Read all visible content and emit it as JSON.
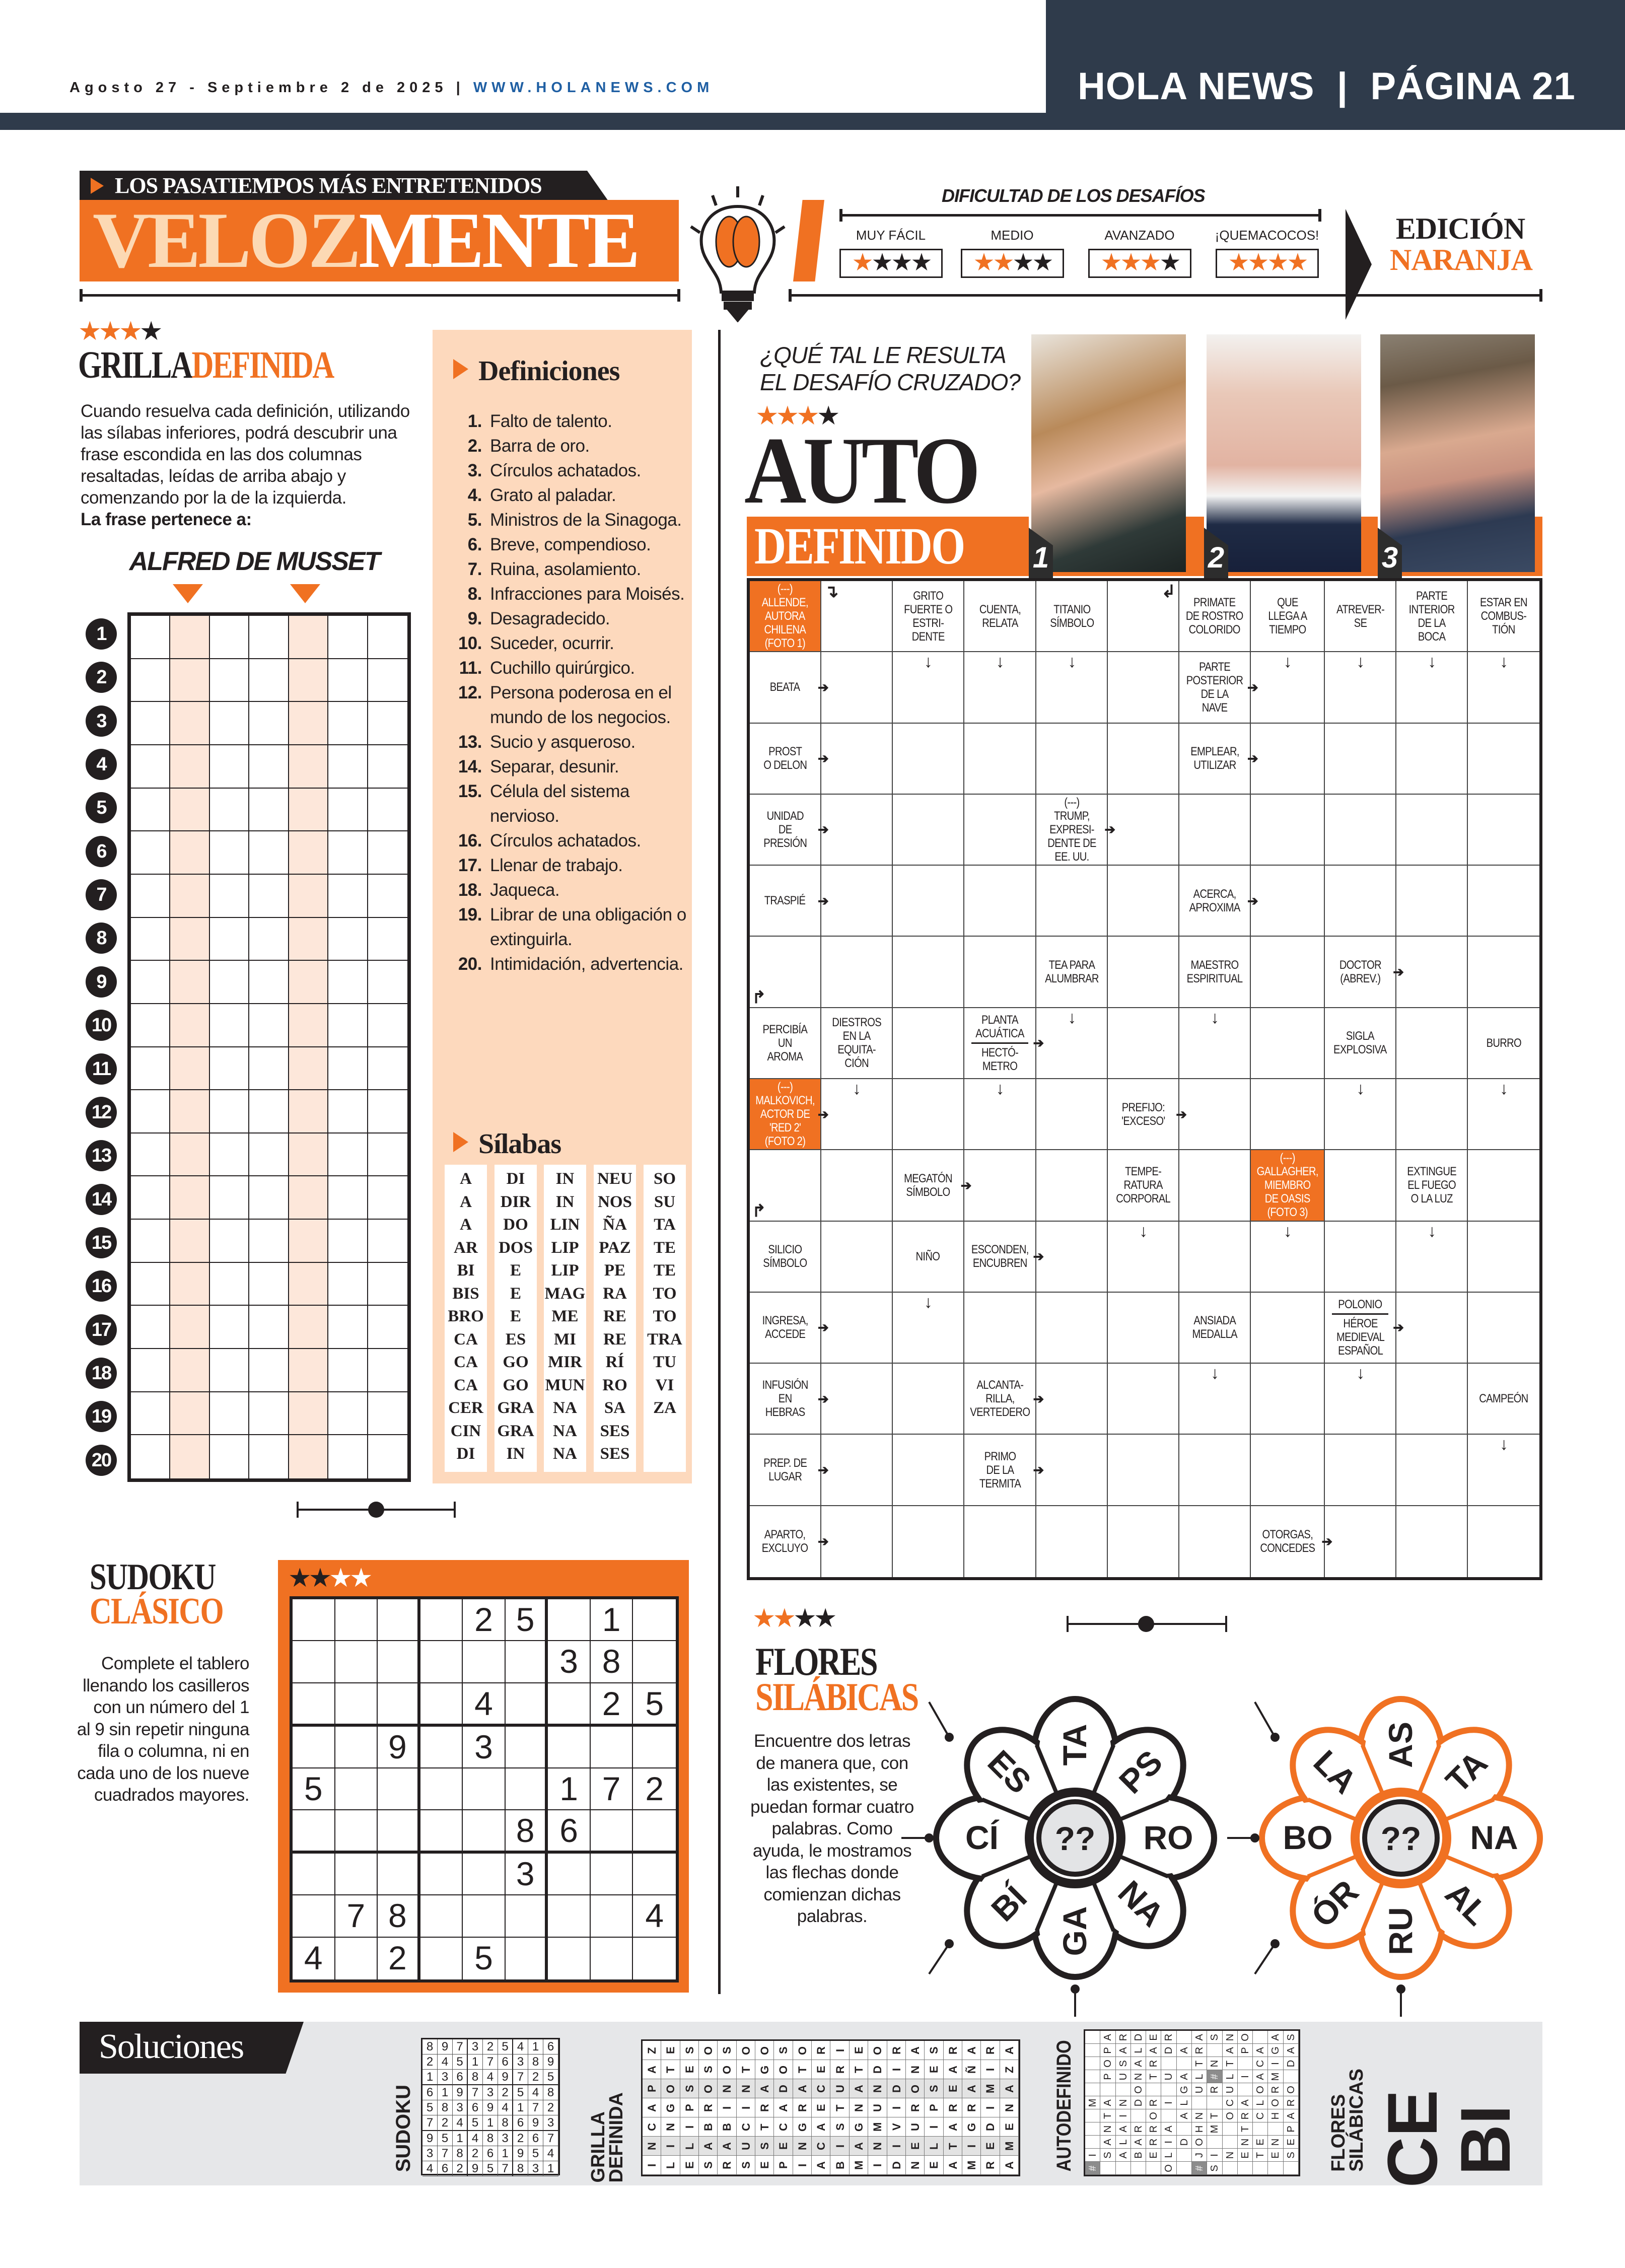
{
  "header": {
    "date": "Agosto 27 - Septiembre 2 de 2025",
    "separator": "|",
    "url": "WWW.HOLANEWS.COM",
    "paper_page": "HOLA NEWS  |  PÁGINA 21"
  },
  "banner": {
    "tagline": "LOS PASATIEMPOS MÁS ENTRETENIDOS",
    "title_part1": "VELOZ",
    "title_part2": "MENTE",
    "difficulty_title": "DIFICULTAD DE LOS DESAFÍOS",
    "levels": [
      {
        "label": "MUY FÁCIL",
        "stars": 1
      },
      {
        "label": "MEDIO",
        "stars": 2
      },
      {
        "label": "AVANZADO",
        "stars": 3
      },
      {
        "label": "¡QUEMACOCOS!",
        "stars": 4
      }
    ],
    "edition_line1": "EDICIÓN",
    "edition_line2": "NARANJA"
  },
  "colors": {
    "accent": "#f07122",
    "navy": "#2f3b4b",
    "peach": "#fdd9bd",
    "dark": "#231f20"
  },
  "grilla": {
    "stars": 3,
    "title_part1": "GRILLA",
    "title_part2": "DEFINIDA",
    "instructions": "Cuando resuelva cada definición, utilizando las sílabas inferiores, podrá descubrir una frase escondida en las dos columnas resaltadas, leídas de arriba abajo y comenzando por la de la izquierda.",
    "author_label": "La frase pertenece a:",
    "author": "ALFRED DE MUSSET",
    "rows": [
      "1",
      "2",
      "3",
      "4",
      "5",
      "6",
      "7",
      "8",
      "9",
      "10",
      "11",
      "12",
      "13",
      "14",
      "15",
      "16",
      "17",
      "18",
      "19",
      "20"
    ],
    "definitions_title": "Definiciones",
    "definitions": [
      {
        "n": "1.",
        "text": "Falto de talento."
      },
      {
        "n": "2.",
        "text": "Barra de oro."
      },
      {
        "n": "3.",
        "text": "Círculos achatados."
      },
      {
        "n": "4.",
        "text": "Grato al paladar."
      },
      {
        "n": "5.",
        "text": "Ministros de la Sinagoga."
      },
      {
        "n": "6.",
        "text": "Breve, compendioso."
      },
      {
        "n": "7.",
        "text": "Ruina, asolamiento."
      },
      {
        "n": "8.",
        "text": "Infracciones para Moisés."
      },
      {
        "n": "9.",
        "text": "Desagradecido."
      },
      {
        "n": "10.",
        "text": "Suceder, ocurrir."
      },
      {
        "n": "11.",
        "text": "Cuchillo quirúrgico."
      },
      {
        "n": "12.",
        "text": "Persona poderosa en el mundo de los negocios."
      },
      {
        "n": "13.",
        "text": "Sucio y asqueroso."
      },
      {
        "n": "14.",
        "text": "Separar, desunir."
      },
      {
        "n": "15.",
        "text": "Célula del sistema nervioso."
      },
      {
        "n": "16.",
        "text": "Círculos achatados."
      },
      {
        "n": "17.",
        "text": "Llenar de trabajo."
      },
      {
        "n": "18.",
        "text": "Jaqueca."
      },
      {
        "n": "19.",
        "text": "Librar de una obligación o extinguirla."
      },
      {
        "n": "20.",
        "text": "Intimidación, advertencia."
      }
    ],
    "syllables_title": "Sílabas",
    "syllables": [
      [
        "A",
        "A",
        "A",
        "AR",
        "BI",
        "BIS",
        "BRO",
        "CA",
        "CA",
        "CA",
        "CER",
        "CIN",
        "DI"
      ],
      [
        "DI",
        "DIR",
        "DO",
        "DOS",
        "E",
        "E",
        "E",
        "ES",
        "GO",
        "GO",
        "GRA",
        "GRA",
        "IN"
      ],
      [
        "IN",
        "IN",
        "LIN",
        "LIP",
        "LIP",
        "MAG",
        "ME",
        "MI",
        "MIR",
        "MUN",
        "NA",
        "NA",
        "NA"
      ],
      [
        "NEU",
        "NOS",
        "ÑA",
        "PAZ",
        "PE",
        "RA",
        "RE",
        "RE",
        "RÍ",
        "RO",
        "SA",
        "SES",
        "SES"
      ],
      [
        "SO",
        "SU",
        "TA",
        "TE",
        "TE",
        "TO",
        "TO",
        "TRA",
        "TU",
        "VI",
        "ZA"
      ]
    ]
  },
  "sudoku": {
    "stars": 2,
    "title_line1": "SUDOKU",
    "title_line2": "CLÁSICO",
    "instructions": "Complete el tablero llenando los casilleros con un número del 1 al 9 sin repetir ninguna fila o columna, ni en cada uno de los nueve cuadrados mayores.",
    "grid": [
      "....25.1.",
      "......38.",
      "....4..25",
      "..9.3....",
      "5.....172",
      ".....86..",
      ".....3...",
      ".78.....4",
      "4.2.5...."
    ]
  },
  "autodefinido": {
    "question": "¿QUÉ TAL LE RESULTA EL DESAFÍO CRUZADO?",
    "stars": 3,
    "title_line1": "AUTO",
    "title_line2": "DEFINIDO",
    "photos": [
      "1",
      "2",
      "3"
    ],
    "clues": [
      {
        "r": 0,
        "c": 0,
        "text": "(---)\nALLENDE,\nAUTORA\nCHILENA\n(FOTO 1)",
        "highlight": true
      },
      {
        "r": 0,
        "c": 2,
        "text": "GRITO\nFUERTE O\nESTRI-\nDENTE"
      },
      {
        "r": 0,
        "c": 3,
        "text": "CUENTA,\nRELATA"
      },
      {
        "r": 0,
        "c": 4,
        "text": "TITANIO\nSÍMBOLO"
      },
      {
        "r": 0,
        "c": 6,
        "text": "PRIMATE\nDE ROSTRO\nCOLORIDO"
      },
      {
        "r": 0,
        "c": 7,
        "text": "QUE\nLLEGA A\nTIEMPO"
      },
      {
        "r": 0,
        "c": 8,
        "text": "ATREVER-\nSE"
      },
      {
        "r": 0,
        "c": 9,
        "text": "PARTE\nINTERIOR\nDE LA\nBOCA"
      },
      {
        "r": 0,
        "c": 10,
        "text": "ESTAR EN\nCOMBUS-\nTIÓN"
      },
      {
        "r": 1,
        "c": 0,
        "text": "BEATA"
      },
      {
        "r": 1,
        "c": 6,
        "text": "PARTE\nPOSTERIOR\nDE LA\nNAVE"
      },
      {
        "r": 2,
        "c": 0,
        "text": "PROST\nO DELON"
      },
      {
        "r": 2,
        "c": 6,
        "text": "EMPLEAR,\nUTILIZAR"
      },
      {
        "r": 3,
        "c": 0,
        "text": "UNIDAD\nDE\nPRESIÓN"
      },
      {
        "r": 3,
        "c": 4,
        "text": "(---)\nTRUMP,\nEXPRESI-\nDENTE DE\nEE. UU."
      },
      {
        "r": 4,
        "c": 0,
        "text": "TRASPIÉ"
      },
      {
        "r": 4,
        "c": 6,
        "text": "ACERCA,\nAPROXIMA"
      },
      {
        "r": 5,
        "c": 4,
        "text": "TEA PARA\nALUMBRAR"
      },
      {
        "r": 5,
        "c": 6,
        "text": "MAESTRO\nESPIRITUAL"
      },
      {
        "r": 5,
        "c": 8,
        "text": "DOCTOR\n(ABREV.)"
      },
      {
        "r": 6,
        "c": 0,
        "text": "PERCIBÍA\nUN\nAROMA"
      },
      {
        "r": 6,
        "c": 1,
        "text": "DIESTROS\nEN LA\nEQUITA-\nCIÓN"
      },
      {
        "r": 6,
        "c": 3,
        "text": "PLANTA\nACUÁTICA",
        "text2": "HECTÓ-\nMETRO"
      },
      {
        "r": 6,
        "c": 8,
        "text": "SIGLA\nEXPLOSIVA"
      },
      {
        "r": 6,
        "c": 10,
        "text": "BURRO"
      },
      {
        "r": 7,
        "c": 0,
        "text": "(---)\nMALKOVICH,\nACTOR DE\n'RED 2'\n(FOTO 2)",
        "highlight": true
      },
      {
        "r": 7,
        "c": 5,
        "text": "PREFIJO:\n'EXCESO'"
      },
      {
        "r": 8,
        "c": 2,
        "text": "MEGATÓN\nSÍMBOLO"
      },
      {
        "r": 8,
        "c": 5,
        "text": "TEMPE-\nRATURA\nCORPORAL"
      },
      {
        "r": 8,
        "c": 7,
        "text": "(---)\nGALLAGHER,\nMIEMBRO\nDE OASIS\n(FOTO 3)",
        "highlight": true
      },
      {
        "r": 8,
        "c": 9,
        "text": "EXTINGUE\nEL FUEGO\nO LA LUZ"
      },
      {
        "r": 9,
        "c": 0,
        "text": "SILICIO\nSÍMBOLO"
      },
      {
        "r": 9,
        "c": 2,
        "text": "NIÑO"
      },
      {
        "r": 9,
        "c": 3,
        "text": "ESCONDEN,\nENCUBREN"
      },
      {
        "r": 10,
        "c": 0,
        "text": "INGRESA,\nACCEDE"
      },
      {
        "r": 10,
        "c": 6,
        "text": "ANSIADA\nMEDALLA"
      },
      {
        "r": 10,
        "c": 8,
        "text": "POLONIO",
        "text2": "HÉROE\nMEDIEVAL\nESPAÑOL"
      },
      {
        "r": 11,
        "c": 0,
        "text": "INFUSIÓN\nEN\nHEBRAS"
      },
      {
        "r": 11,
        "c": 3,
        "text": "ALCANTA-\nRILLA,\nVERTEDERO"
      },
      {
        "r": 11,
        "c": 10,
        "text": "CAMPEÓN"
      },
      {
        "r": 12,
        "c": 0,
        "text": "PREP. DE\nLUGAR"
      },
      {
        "r": 12,
        "c": 3,
        "text": "PRIMO\nDE LA\nTERMITA"
      },
      {
        "r": 13,
        "c": 0,
        "text": "APARTO,\nEXCLUYO"
      },
      {
        "r": 13,
        "c": 7,
        "text": "OTORGAS,\nCONCEDES"
      }
    ],
    "arrows": [
      {
        "r": 0,
        "c": 1,
        "dir": "right-down"
      },
      {
        "r": 0,
        "c": 5,
        "dir": "left-down"
      },
      {
        "r": 1,
        "c": 2,
        "dir": "down"
      },
      {
        "r": 1,
        "c": 3,
        "dir": "down"
      },
      {
        "r": 1,
        "c": 4,
        "dir": "down"
      },
      {
        "r": 1,
        "c": 7,
        "dir": "down"
      },
      {
        "r": 1,
        "c": 8,
        "dir": "down"
      },
      {
        "r": 1,
        "c": 9,
        "dir": "down"
      },
      {
        "r": 1,
        "c": 10,
        "dir": "down"
      },
      {
        "r": 1,
        "c": 0,
        "dir": "right"
      },
      {
        "r": 1,
        "c": 6,
        "dir": "right"
      },
      {
        "r": 2,
        "c": 0,
        "dir": "right"
      },
      {
        "r": 2,
        "c": 6,
        "dir": "right"
      },
      {
        "r": 3,
        "c": 0,
        "dir": "right"
      },
      {
        "r": 3,
        "c": 4,
        "dir": "right"
      },
      {
        "r": 4,
        "c": 0,
        "dir": "right"
      },
      {
        "r": 4,
        "c": 6,
        "dir": "right"
      },
      {
        "r": 5,
        "c": 0,
        "dir": "up-right"
      },
      {
        "r": 5,
        "c": 8,
        "dir": "right"
      },
      {
        "r": 6,
        "c": 4,
        "dir": "down"
      },
      {
        "r": 6,
        "c": 6,
        "dir": "down"
      },
      {
        "r": 6,
        "c": 3,
        "dir": "right"
      },
      {
        "r": 7,
        "c": 1,
        "dir": "down"
      },
      {
        "r": 7,
        "c": 3,
        "dir": "down"
      },
      {
        "r": 7,
        "c": 8,
        "dir": "down"
      },
      {
        "r": 7,
        "c": 10,
        "dir": "down"
      },
      {
        "r": 7,
        "c": 0,
        "dir": "right"
      },
      {
        "r": 7,
        "c": 5,
        "dir": "right"
      },
      {
        "r": 8,
        "c": 0,
        "dir": "up-right"
      },
      {
        "r": 8,
        "c": 2,
        "dir": "right"
      },
      {
        "r": 9,
        "c": 5,
        "dir": "down"
      },
      {
        "r": 9,
        "c": 7,
        "dir": "down"
      },
      {
        "r": 9,
        "c": 9,
        "dir": "down"
      },
      {
        "r": 9,
        "c": 3,
        "dir": "right"
      },
      {
        "r": 10,
        "c": 2,
        "dir": "down"
      },
      {
        "r": 10,
        "c": 0,
        "dir": "right"
      },
      {
        "r": 10,
        "c": 8,
        "dir": "right"
      },
      {
        "r": 11,
        "c": 6,
        "dir": "down"
      },
      {
        "r": 11,
        "c": 8,
        "dir": "down"
      },
      {
        "r": 11,
        "c": 0,
        "dir": "right"
      },
      {
        "r": 11,
        "c": 3,
        "dir": "right"
      },
      {
        "r": 12,
        "c": 10,
        "dir": "down"
      },
      {
        "r": 12,
        "c": 0,
        "dir": "right"
      },
      {
        "r": 12,
        "c": 3,
        "dir": "right"
      },
      {
        "r": 13,
        "c": 0,
        "dir": "right"
      },
      {
        "r": 13,
        "c": 7,
        "dir": "right"
      }
    ]
  },
  "flores": {
    "stars": 2,
    "title_line1": "FLORES",
    "title_line2": "SILÁBICAS",
    "instructions": "Encuentre dos letras de manera que, con las existentes, se puedan formar cuatro palabras. Como ayuda, le mostramos las flechas donde comienzan dichas palabras.",
    "flowers": [
      {
        "center": "??",
        "petals": [
          "TA",
          "PS",
          "RO",
          "NA",
          "GA",
          "BÍ",
          "CÍ",
          "ES"
        ],
        "color": "#231f20"
      },
      {
        "center": "??",
        "petals": [
          "AS",
          "TA",
          "NA",
          "AL",
          "RU",
          "ÓR",
          "BO",
          "LA"
        ],
        "color": "#f07122"
      }
    ]
  },
  "solutions": {
    "title": "Soluciones",
    "sudoku_label": "SUDOKU",
    "sudoku": [
      "897325416",
      "245176389",
      "136849725",
      "619732548",
      "583694172",
      "724518693",
      "951483267",
      "378261954",
      "462957831"
    ],
    "grilla_label_1": "GRILLA",
    "grilla_label_2": "DEFINIDA",
    "grilla": [
      "INCAPAZ",
      "LINGOTE",
      "ELIPSES",
      "SABROSO",
      "RABINOS",
      "SUCINTO",
      "ESTRAGO",
      "PECADOS",
      "INGRATO",
      "ACAECER",
      "BISTURI",
      "MAGNATE",
      "INMUNDO",
      "DIVIDIR",
      "NEURONA",
      "ELIPSES",
      "ATAREAR",
      "MIGRAÑA",
      "REDIMIR",
      "AMENAZA"
    ],
    "autodefinido_label": "AUTODEFINIDO",
    "autodefinido": [
      " ARDER ASNO AS",
      " PALADAR APAGA",
      " OSAR  TNT CID",
      " PUNTUAL#LIAM ",
      "   O  GURU ORO",
      "MANDRIL  CALOR",
      " TI O ANTORCHA",
      " NARRA HM T  P",
      " ALARIDO  NENE",
      "ISABEL JINETES",
      "#    O #S     "
    ],
    "flores_label_1": "FLORES",
    "flores_label_2": "SILÁBICAS",
    "flores": [
      "CE",
      "BI"
    ]
  }
}
